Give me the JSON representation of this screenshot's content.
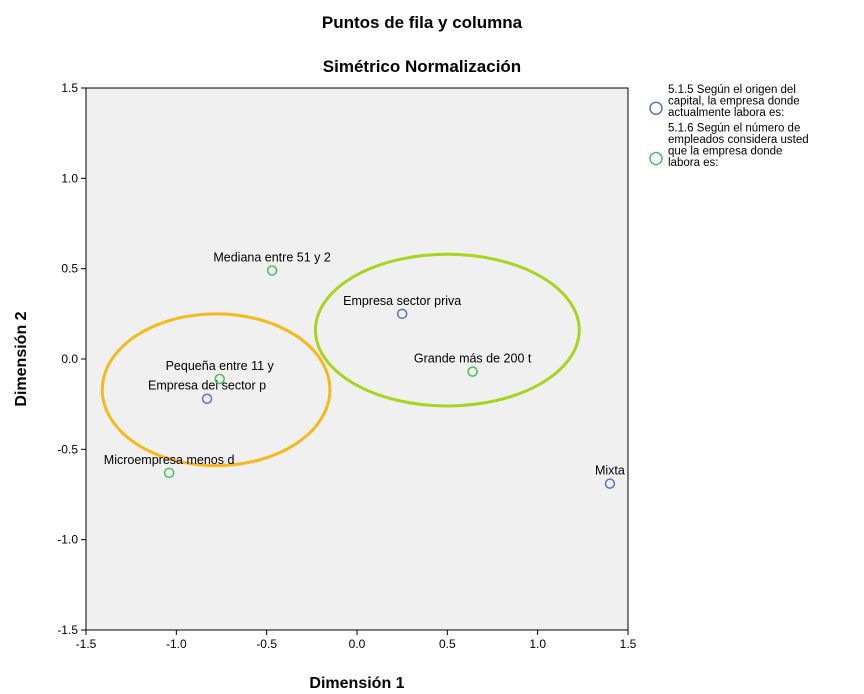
{
  "chart_data": {
    "type": "scatter",
    "title": "Puntos de fila y columna",
    "subtitle": "Simétrico Normalización",
    "xlabel": "Dimensión 1",
    "ylabel": "Dimensión 2",
    "xlim": [
      -1.5,
      1.5
    ],
    "ylim": [
      -1.5,
      1.5
    ],
    "xticks": [
      "-1.5",
      "-1.0",
      "-0.5",
      "0.0",
      "0.5",
      "1.0",
      "1.5"
    ],
    "yticks": [
      "1.5",
      "1.0",
      "0.5",
      "0.0",
      "-0.5",
      "-1.0",
      "-1.5"
    ],
    "grid": false,
    "background": "#f0f0f0",
    "legend_position": "top-right",
    "series": [
      {
        "name": "5.1.5 Según el origen del capital, la empresa donde actualmente labora es:",
        "legend_lines": [
          "5.1.5 Según el origen del",
          "capital, la empresa donde",
          "actualmente labora es:"
        ],
        "color": "#5a6fc8",
        "points": [
          {
            "x": 0.25,
            "y": 0.25,
            "label": "Empresa sector priva"
          },
          {
            "x": -0.83,
            "y": -0.22,
            "label": "Empresa del sector p"
          },
          {
            "x": 1.4,
            "y": -0.69,
            "label": "Mixta"
          }
        ]
      },
      {
        "name": "5.1.6 Según el número de empleados considera usted que la empresa donde labora es:",
        "legend_lines": [
          "5.1.6 Según el número de",
          "empleados considera usted",
          "que la empresa donde",
          "labora es:"
        ],
        "color": "#4dbb5f",
        "points": [
          {
            "x": -0.47,
            "y": 0.49,
            "label": "Mediana entre 51 y 2"
          },
          {
            "x": -0.76,
            "y": -0.11,
            "label": "Pequeña entre 11 y"
          },
          {
            "x": 0.64,
            "y": -0.07,
            "label": "Grande más de 200 t"
          },
          {
            "x": -1.04,
            "y": -0.63,
            "label": "Microempresa menos d"
          }
        ]
      }
    ],
    "annotations": [
      {
        "shape": "ellipse",
        "cx": 0.5,
        "cy": 0.16,
        "rx": 0.73,
        "ry": 0.42,
        "color": "#a8d420"
      },
      {
        "shape": "ellipse",
        "cx": -0.78,
        "cy": -0.17,
        "rx": 0.63,
        "ry": 0.42,
        "color": "#f6b81c"
      }
    ]
  }
}
